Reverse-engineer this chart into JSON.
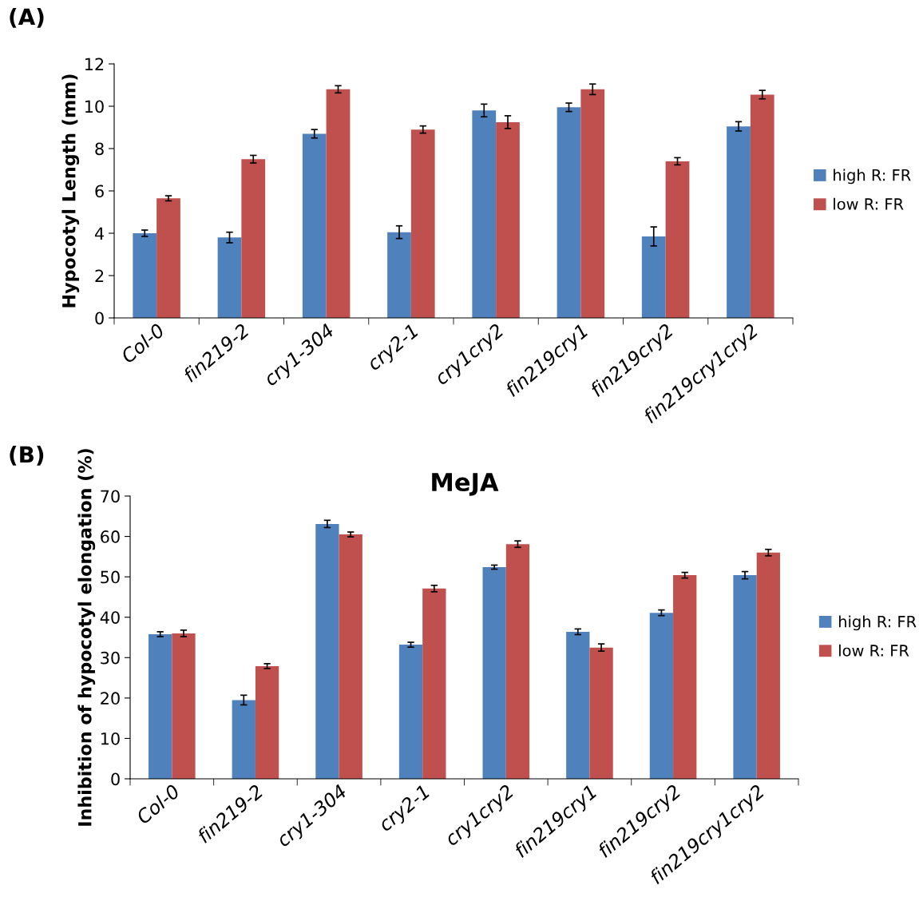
{
  "chart_data": [
    {
      "type": "bar",
      "annotations": [
        "(A)"
      ],
      "ylabel": "Hypocotyl Length (mm)",
      "categories": [
        "Col-0",
        "fin219-2",
        "cry1-304",
        "cry2-1",
        "cry1cry2",
        "fin219cry1",
        "fin219cry2",
        "fin219cry1cry2"
      ],
      "series": [
        {
          "name": "high R: FR",
          "color": "#4f81bd",
          "values": [
            4.0,
            3.8,
            8.7,
            4.05,
            9.8,
            9.95,
            3.85,
            9.05
          ],
          "errors": [
            0.15,
            0.25,
            0.2,
            0.3,
            0.3,
            0.2,
            0.45,
            0.22
          ]
        },
        {
          "name": "low R: FR",
          "color": "#c0504d",
          "values": [
            5.65,
            7.5,
            10.8,
            8.9,
            9.25,
            10.8,
            7.4,
            10.55
          ],
          "errors": [
            0.12,
            0.18,
            0.17,
            0.17,
            0.3,
            0.25,
            0.17,
            0.2
          ]
        }
      ],
      "ylim": [
        0,
        12
      ],
      "yticks": [
        0,
        2,
        4,
        6,
        8,
        10,
        12
      ],
      "grid": false,
      "legend": "right"
    },
    {
      "type": "bar",
      "annotations": [
        "(B)"
      ],
      "title": "MeJA",
      "ylabel": "Inhibition of hypocotyl elongation (%)",
      "categories": [
        "Col-0",
        "fin219-2",
        "cry1-304",
        "cry2-1",
        "cry1cry2",
        "fin219cry1",
        "fin219cry2",
        "fin219cry1cry2"
      ],
      "series": [
        {
          "name": "high R: FR",
          "color": "#4f81bd",
          "values": [
            35.8,
            19.5,
            63.1,
            33.2,
            52.4,
            36.4,
            41.1,
            50.4
          ],
          "errors": [
            0.6,
            1.2,
            0.9,
            0.6,
            0.5,
            0.7,
            0.7,
            0.9
          ]
        },
        {
          "name": "low R: FR",
          "color": "#c0504d",
          "values": [
            36.0,
            27.9,
            60.5,
            47.1,
            58.1,
            32.5,
            50.4,
            56.0
          ],
          "errors": [
            0.8,
            0.6,
            0.6,
            0.8,
            0.8,
            0.9,
            0.7,
            0.8
          ]
        }
      ],
      "ylim": [
        0,
        70
      ],
      "yticks": [
        0,
        10,
        20,
        30,
        40,
        50,
        60,
        70
      ],
      "grid": false,
      "legend": "right"
    }
  ]
}
